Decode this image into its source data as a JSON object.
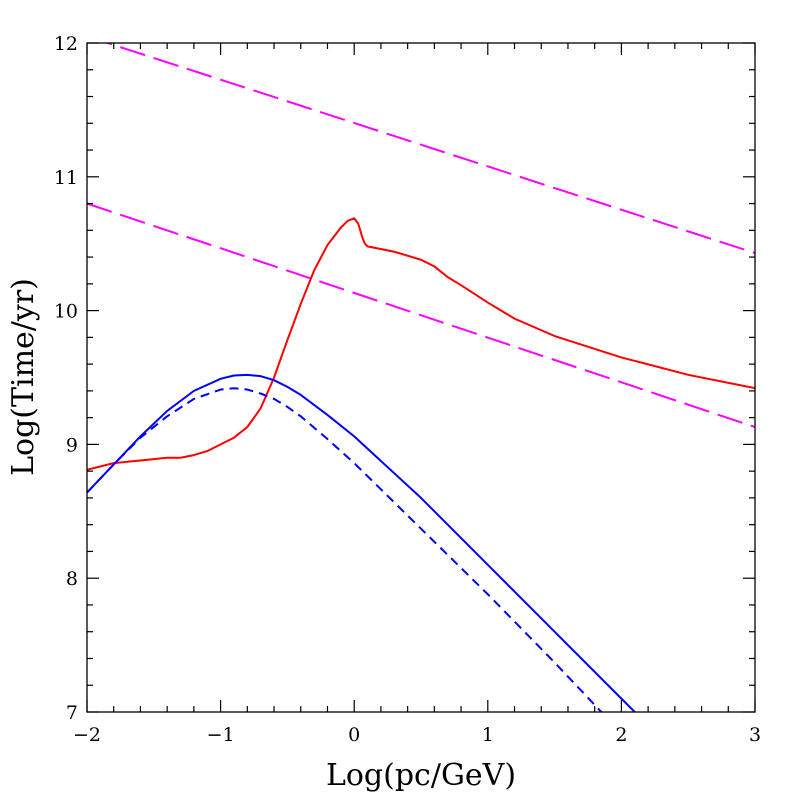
{
  "chart_data": {
    "type": "line",
    "title": "",
    "xlabel": "Log(pc/GeV)",
    "ylabel": "Log(Time/yr)",
    "xlim": [
      -2,
      3
    ],
    "ylim": [
      7,
      12
    ],
    "x_ticks": [
      "−2",
      "−1",
      "0",
      "1",
      "2",
      "3"
    ],
    "x_tick_values": [
      -2,
      -1,
      0,
      1,
      2,
      3
    ],
    "y_ticks": [
      "7",
      "8",
      "9",
      "10",
      "11",
      "12"
    ],
    "y_tick_values": [
      7,
      8,
      9,
      10,
      11,
      12
    ],
    "grid": false,
    "series": [
      {
        "color": "#ff00ff",
        "style": "long-dash",
        "x": [
          -2.0,
          3.0
        ],
        "y": [
          12.05,
          10.43
        ]
      },
      {
        "color": "#ff00ff",
        "style": "long-dash",
        "x": [
          -2.0,
          3.0
        ],
        "y": [
          10.8,
          9.13
        ]
      },
      {
        "color": "#ff0000",
        "style": "solid",
        "x": [
          -2.0,
          -1.8,
          -1.6,
          -1.5,
          -1.4,
          -1.3,
          -1.2,
          -1.1,
          -1.0,
          -0.9,
          -0.8,
          -0.7,
          -0.6,
          -0.5,
          -0.4,
          -0.3,
          -0.2,
          -0.1,
          -0.05,
          0.0,
          0.03,
          0.06,
          0.08,
          0.1,
          0.15,
          0.3,
          0.5,
          0.6,
          0.7,
          0.8,
          1.0,
          1.2,
          1.5,
          2.0,
          2.5,
          3.0
        ],
        "y": [
          8.81,
          8.86,
          8.88,
          8.89,
          8.9,
          8.9,
          8.92,
          8.95,
          9.0,
          9.05,
          9.13,
          9.27,
          9.5,
          9.78,
          10.05,
          10.3,
          10.49,
          10.62,
          10.67,
          10.69,
          10.65,
          10.55,
          10.5,
          10.48,
          10.47,
          10.44,
          10.38,
          10.33,
          10.25,
          10.19,
          10.06,
          9.94,
          9.81,
          9.65,
          9.52,
          9.42
        ]
      },
      {
        "color": "#0000ff",
        "style": "solid",
        "x": [
          -2.0,
          -1.8,
          -1.6,
          -1.4,
          -1.2,
          -1.0,
          -0.9,
          -0.8,
          -0.7,
          -0.6,
          -0.5,
          -0.4,
          -0.2,
          0.0,
          0.5,
          1.0,
          1.5,
          2.0,
          2.1
        ],
        "y": [
          8.64,
          8.85,
          9.06,
          9.25,
          9.4,
          9.49,
          9.515,
          9.52,
          9.51,
          9.48,
          9.43,
          9.37,
          9.22,
          9.06,
          8.6,
          8.1,
          7.6,
          7.1,
          7.0
        ]
      },
      {
        "color": "#0000ff",
        "style": "dashed",
        "x": [
          -2.0,
          -1.8,
          -1.6,
          -1.4,
          -1.2,
          -1.0,
          -0.9,
          -0.8,
          -0.7,
          -0.6,
          -0.5,
          -0.4,
          -0.2,
          0.0,
          0.5,
          1.0,
          1.5,
          1.85
        ],
        "y": [
          8.64,
          8.85,
          9.05,
          9.21,
          9.34,
          9.41,
          9.42,
          9.41,
          9.38,
          9.34,
          9.28,
          9.21,
          9.04,
          8.86,
          8.37,
          7.88,
          7.37,
          7.0
        ]
      }
    ]
  }
}
